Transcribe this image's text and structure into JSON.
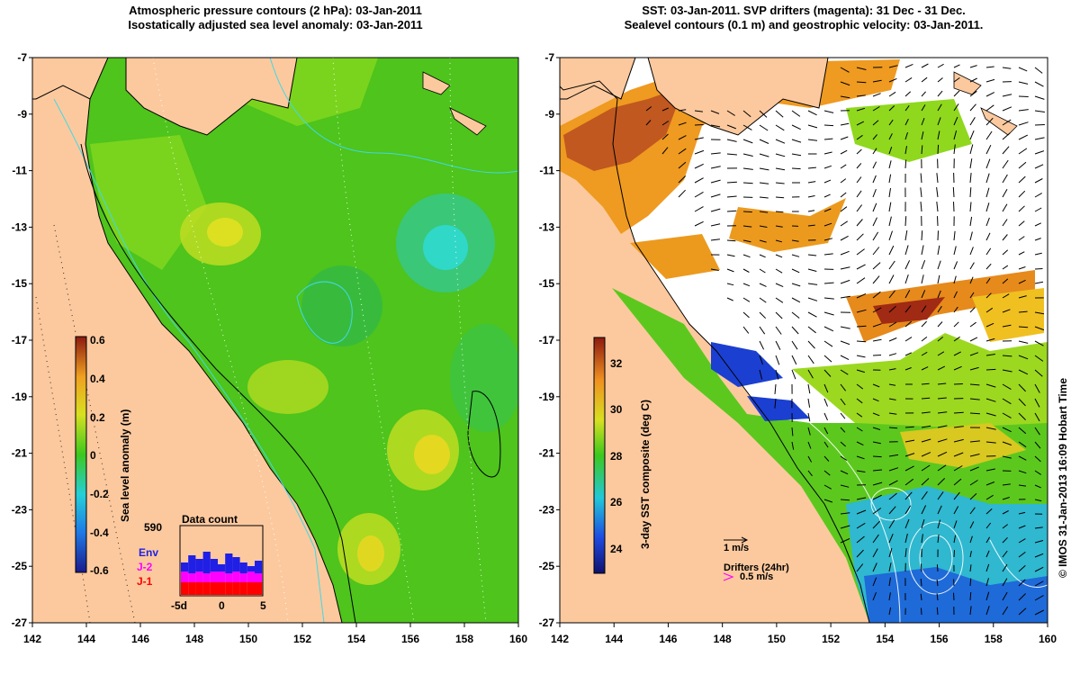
{
  "left_panel": {
    "title_line1": "Atmospheric pressure contours (2 hPa): 03-Jan-2011",
    "title_line2": "Isostatically adjusted sea level anomaly: 03-Jan-2011",
    "colorbar": {
      "label": "Sea level anomaly (m)",
      "ticks": [
        "0.6",
        "0.4",
        "0.2",
        "0",
        "-0.2",
        "-0.4",
        "-0.6"
      ]
    },
    "data_count": {
      "title": "Data count",
      "max_label": "590",
      "legend": [
        "Env",
        "J-2",
        "J-1"
      ],
      "legend_colors": [
        "#1f1fe6",
        "#ff00ff",
        "#ff0000"
      ],
      "x_ticks": [
        "-5d",
        "0",
        "5"
      ]
    }
  },
  "right_panel": {
    "title_line1": "SST: 03-Jan-2011. SVP drifters (magenta): 31 Dec - 31 Dec.",
    "title_line2": "Sealevel contours (0.1 m) and geostrophic velocity: 03-Jan-2011.",
    "colorbar": {
      "label": "3-day SST composite (deg C)",
      "ticks": [
        "32",
        "30",
        "28",
        "26",
        "24"
      ]
    },
    "velocity_scale_label": "1 m/s",
    "drifters_label": "Drifters (24hr)",
    "drifters_scale_label": "0.5 m/s"
  },
  "axes": {
    "lat_ticks": [
      "-7",
      "-9",
      "-11",
      "-13",
      "-15",
      "-17",
      "-19",
      "-21",
      "-23",
      "-25",
      "-27"
    ],
    "lon_ticks": [
      "142",
      "144",
      "146",
      "148",
      "150",
      "152",
      "154",
      "156",
      "158",
      "160"
    ]
  },
  "credit": "© IMOS 31-Jan-2013 16:09 Hobart Time",
  "colors": {
    "land": "#fcc99e",
    "sla_green": "#52c41a",
    "sla_lightgreen": "#8fdc1e",
    "sla_yellow": "#e4e21c",
    "sla_cyan": "#2fd8c7",
    "sst_orange": "#f0a020",
    "sst_red": "#b8401a",
    "sst_blue": "#1b3fd0"
  }
}
